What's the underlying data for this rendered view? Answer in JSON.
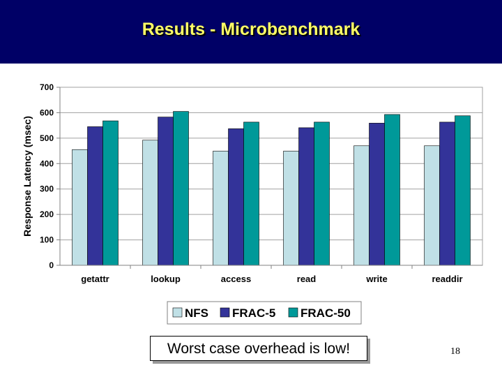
{
  "slide": {
    "title": "Results - Microbenchmark",
    "callout": "Worst case overhead is low!",
    "page_number": "18"
  },
  "chart_data": {
    "type": "bar",
    "title": "",
    "xlabel": "",
    "ylabel": "Response Latency (msec)",
    "ylim": [
      0,
      700
    ],
    "yticks": [
      0,
      100,
      200,
      300,
      400,
      500,
      600,
      700
    ],
    "grid": true,
    "legend_position": "bottom-center",
    "categories": [
      "getattr",
      "lookup",
      "access",
      "read",
      "write",
      "readdir"
    ],
    "series": [
      {
        "name": "NFS",
        "color": "#c0e0e6",
        "values": [
          455,
          492,
          449,
          449,
          470,
          470
        ]
      },
      {
        "name": "FRAC-5",
        "color": "#333399",
        "values": [
          545,
          583,
          537,
          541,
          559,
          563
        ]
      },
      {
        "name": "FRAC-50",
        "color": "#009999",
        "values": [
          568,
          605,
          563,
          563,
          593,
          588
        ]
      }
    ]
  }
}
